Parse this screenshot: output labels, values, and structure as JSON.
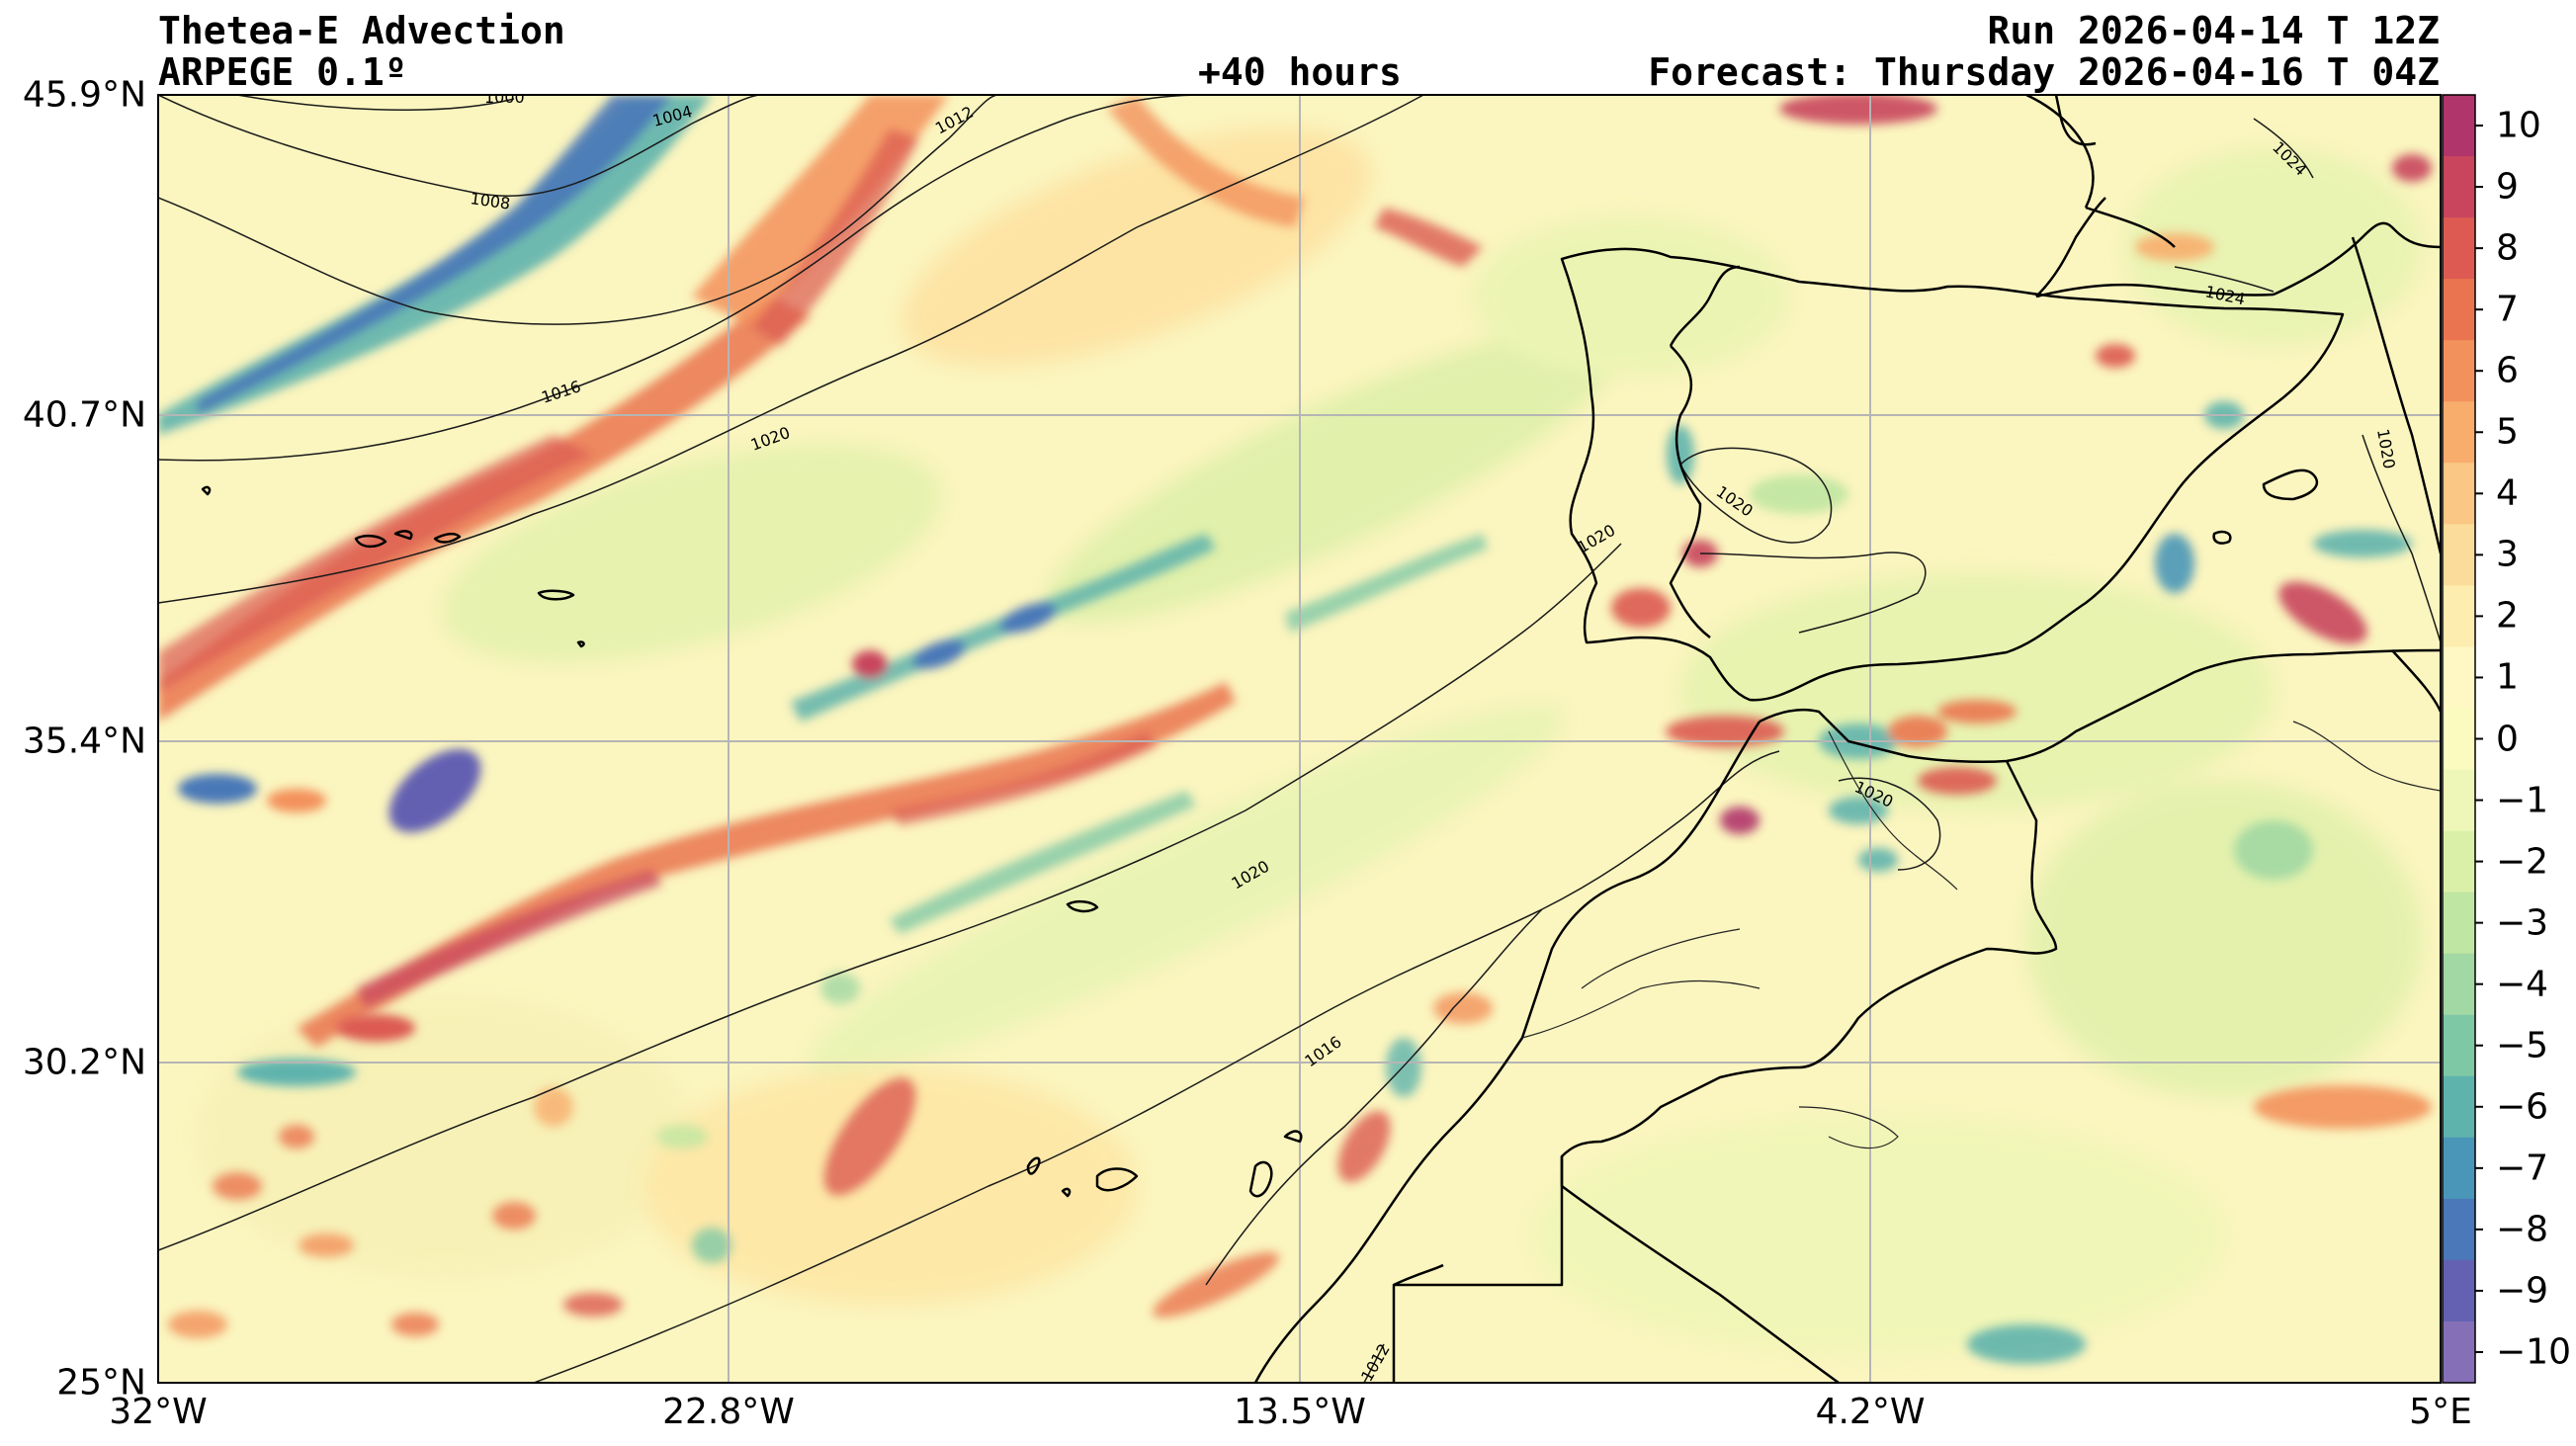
{
  "header": {
    "title": "Thetea-E Advection",
    "model": "ARPEGE 0.1º",
    "lead": "+40 hours",
    "run": "Run 2026-04-14 T 12Z",
    "forecast": "Forecast: Thursday 2026-04-16 T 04Z"
  },
  "axes": {
    "lat_labels": [
      "45.9°N",
      "40.7°N",
      "35.4°N",
      "30.2°N",
      "25°N"
    ],
    "lon_labels": [
      "32°W",
      "22.8°W",
      "13.5°W",
      "4.2°W",
      "5°E"
    ]
  },
  "colorbar": {
    "tick_labels": [
      "10",
      "9",
      "8",
      "7",
      "6",
      "5",
      "4",
      "3",
      "2",
      "1",
      "0",
      "−1",
      "−2",
      "−3",
      "−4",
      "−5",
      "−6",
      "−7",
      "−8",
      "−9",
      "−10"
    ],
    "colors": [
      "#b0356a",
      "#c8455d",
      "#dc5a51",
      "#ea7450",
      "#f3915c",
      "#f8ad6d",
      "#fbc784",
      "#fcdc9a",
      "#fdedae",
      "#fff8c4",
      "#fbfbc0",
      "#eef7b8",
      "#daf0a8",
      "#bfe6a2",
      "#a1d8a3",
      "#7fc8a6",
      "#5eb3ad",
      "#4a96b8",
      "#4a78b8",
      "#6461b2",
      "#8570b8"
    ]
  },
  "contours": {
    "labels": [
      "1000",
      "1004",
      "1008",
      "1012",
      "1016",
      "1020",
      "1020",
      "1020",
      "1016",
      "1020",
      "1020",
      "1024",
      "1024",
      "1020",
      "1012"
    ]
  },
  "colors": {
    "background_field": "#fbf5bf",
    "grid": "#b5b5b5",
    "coast": "#000000"
  }
}
